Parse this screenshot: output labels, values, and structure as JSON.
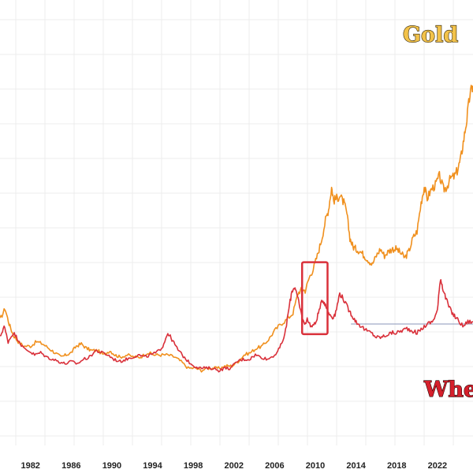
{
  "chart_data": {
    "type": "line",
    "title": "",
    "xlabel": "",
    "ylabel": "",
    "x_ticks": [
      "1982",
      "1986",
      "1990",
      "1994",
      "1998",
      "2002",
      "2006",
      "2010",
      "2014",
      "2018",
      "2022"
    ],
    "xlim": [
      1979.0,
      2025.5
    ],
    "ylim": [
      0,
      100
    ],
    "grid": true,
    "series": [
      {
        "name": "Gold",
        "color": "#f0901e",
        "points": [
          [
            1979.0,
            28.5
          ],
          [
            1979.5,
            31
          ],
          [
            1979.9,
            27.5
          ],
          [
            1980.3,
            25
          ],
          [
            1980.8,
            23.5
          ],
          [
            1981.3,
            22.5
          ],
          [
            1982.0,
            22.5
          ],
          [
            1982.6,
            23.5
          ],
          [
            1983.2,
            23
          ],
          [
            1983.8,
            22
          ],
          [
            1984.4,
            21
          ],
          [
            1985.0,
            20
          ],
          [
            1985.5,
            20.5
          ],
          [
            1986.0,
            21
          ],
          [
            1986.5,
            22.5
          ],
          [
            1987.0,
            23
          ],
          [
            1987.5,
            22
          ],
          [
            1988.0,
            21.5
          ],
          [
            1988.6,
            21.5
          ],
          [
            1989.2,
            20.5
          ],
          [
            1989.8,
            21.5
          ],
          [
            1990.3,
            20.5
          ],
          [
            1990.8,
            20
          ],
          [
            1991.5,
            20.5
          ],
          [
            1992.2,
            20
          ],
          [
            1992.8,
            20
          ],
          [
            1993.5,
            21
          ],
          [
            1994.2,
            20.5
          ],
          [
            1994.8,
            20.5
          ],
          [
            1995.5,
            20.5
          ],
          [
            1996.2,
            20
          ],
          [
            1996.8,
            19
          ],
          [
            1997.5,
            17.5
          ],
          [
            1998.2,
            17.5
          ],
          [
            1998.8,
            17
          ],
          [
            1999.5,
            17.5
          ],
          [
            2000.0,
            17.5
          ],
          [
            2000.6,
            17.5
          ],
          [
            2001.2,
            18
          ],
          [
            2001.8,
            18
          ],
          [
            2002.4,
            19
          ],
          [
            2003.0,
            20.5
          ],
          [
            2003.6,
            21
          ],
          [
            2004.2,
            22
          ],
          [
            2004.8,
            22.5
          ],
          [
            2005.4,
            24
          ],
          [
            2006.0,
            26
          ],
          [
            2006.6,
            27.5
          ],
          [
            2007.2,
            28.5
          ],
          [
            2007.8,
            30
          ],
          [
            2008.3,
            34.5
          ],
          [
            2008.7,
            35.5
          ],
          [
            2009.0,
            35
          ],
          [
            2009.4,
            38
          ],
          [
            2009.8,
            40
          ],
          [
            2010.2,
            43
          ],
          [
            2010.6,
            46.5
          ],
          [
            2011.0,
            51
          ],
          [
            2011.3,
            53.5
          ],
          [
            2011.6,
            58.5
          ],
          [
            2011.8,
            55.5
          ],
          [
            2012.1,
            56
          ],
          [
            2012.4,
            56.5
          ],
          [
            2012.8,
            55
          ],
          [
            2013.1,
            52.5
          ],
          [
            2013.4,
            47
          ],
          [
            2013.7,
            45
          ],
          [
            2014.0,
            44.5
          ],
          [
            2014.4,
            44
          ],
          [
            2014.8,
            43
          ],
          [
            2015.2,
            42
          ],
          [
            2015.6,
            41
          ],
          [
            2016.0,
            43
          ],
          [
            2016.4,
            44.5
          ],
          [
            2016.8,
            43
          ],
          [
            2017.2,
            44
          ],
          [
            2017.6,
            44.5
          ],
          [
            2018.0,
            44.5
          ],
          [
            2018.4,
            43.5
          ],
          [
            2018.8,
            42.5
          ],
          [
            2019.2,
            44
          ],
          [
            2019.6,
            47
          ],
          [
            2020.0,
            48.5
          ],
          [
            2020.4,
            55
          ],
          [
            2020.7,
            58.5
          ],
          [
            2021.0,
            56
          ],
          [
            2021.4,
            58
          ],
          [
            2021.8,
            59
          ],
          [
            2022.2,
            61
          ],
          [
            2022.6,
            58
          ],
          [
            2022.9,
            58.5
          ],
          [
            2023.3,
            60.5
          ],
          [
            2023.7,
            61
          ],
          [
            2024.0,
            62.5
          ],
          [
            2024.3,
            65
          ],
          [
            2024.6,
            69.5
          ],
          [
            2024.9,
            74
          ],
          [
            2025.2,
            79.5
          ],
          [
            2025.5,
            81.5
          ]
        ]
      },
      {
        "name": "Wheat",
        "color": "#d9303a",
        "points": [
          [
            1979.0,
            24.5
          ],
          [
            1979.4,
            27
          ],
          [
            1979.8,
            23.5
          ],
          [
            1980.3,
            25.5
          ],
          [
            1980.8,
            24
          ],
          [
            1981.3,
            22
          ],
          [
            1981.8,
            21.5
          ],
          [
            1982.4,
            20.5
          ],
          [
            1983.0,
            21
          ],
          [
            1983.6,
            20
          ],
          [
            1984.2,
            19.5
          ],
          [
            1984.8,
            19
          ],
          [
            1985.4,
            18.5
          ],
          [
            1986.0,
            19
          ],
          [
            1986.6,
            18.5
          ],
          [
            1987.2,
            19.5
          ],
          [
            1987.8,
            20
          ],
          [
            1988.4,
            21.5
          ],
          [
            1989.0,
            21
          ],
          [
            1989.6,
            20.5
          ],
          [
            1990.2,
            19.5
          ],
          [
            1990.8,
            19
          ],
          [
            1991.4,
            19.5
          ],
          [
            1992.0,
            20
          ],
          [
            1992.6,
            20.5
          ],
          [
            1993.2,
            20
          ],
          [
            1993.8,
            20.5
          ],
          [
            1994.4,
            21
          ],
          [
            1995.0,
            22.5
          ],
          [
            1995.5,
            25.5
          ],
          [
            1995.9,
            24
          ],
          [
            1996.4,
            22
          ],
          [
            1996.9,
            20.5
          ],
          [
            1997.5,
            19
          ],
          [
            1998.1,
            18
          ],
          [
            1998.7,
            17.5
          ],
          [
            1999.3,
            17.5
          ],
          [
            1999.9,
            17.5
          ],
          [
            2000.5,
            17
          ],
          [
            2001.1,
            17.5
          ],
          [
            2001.7,
            17.5
          ],
          [
            2002.3,
            19
          ],
          [
            2002.9,
            19.5
          ],
          [
            2003.5,
            19.5
          ],
          [
            2004.1,
            20.5
          ],
          [
            2004.7,
            20
          ],
          [
            2005.3,
            19.5
          ],
          [
            2006.0,
            20.5
          ],
          [
            2006.5,
            22
          ],
          [
            2007.0,
            25
          ],
          [
            2007.4,
            31
          ],
          [
            2007.7,
            35
          ],
          [
            2008.0,
            36
          ],
          [
            2008.3,
            33
          ],
          [
            2008.6,
            30
          ],
          [
            2008.9,
            27.5
          ],
          [
            2009.2,
            28.5
          ],
          [
            2009.6,
            27
          ],
          [
            2010.0,
            27.5
          ],
          [
            2010.3,
            30
          ],
          [
            2010.7,
            33
          ],
          [
            2011.0,
            32
          ],
          [
            2011.3,
            30
          ],
          [
            2011.7,
            29
          ],
          [
            2012.0,
            30
          ],
          [
            2012.4,
            34.5
          ],
          [
            2012.8,
            33
          ],
          [
            2013.2,
            31
          ],
          [
            2013.6,
            29.5
          ],
          [
            2014.0,
            28
          ],
          [
            2014.5,
            27
          ],
          [
            2015.0,
            26
          ],
          [
            2015.5,
            25.5
          ],
          [
            2016.0,
            24.5
          ],
          [
            2016.5,
            24.5
          ],
          [
            2017.0,
            25
          ],
          [
            2017.5,
            25.5
          ],
          [
            2018.0,
            25.5
          ],
          [
            2018.5,
            26
          ],
          [
            2019.0,
            26.5
          ],
          [
            2019.5,
            26
          ],
          [
            2020.0,
            25.5
          ],
          [
            2020.5,
            26.5
          ],
          [
            2021.0,
            27.5
          ],
          [
            2021.5,
            28
          ],
          [
            2022.0,
            30.5
          ],
          [
            2022.3,
            38
          ],
          [
            2022.5,
            36
          ],
          [
            2022.8,
            33.5
          ],
          [
            2023.2,
            31
          ],
          [
            2023.6,
            29.5
          ],
          [
            2024.0,
            28.5
          ],
          [
            2024.5,
            27
          ],
          [
            2025.0,
            28
          ],
          [
            2025.5,
            28
          ]
        ]
      }
    ],
    "annotations": [
      {
        "type": "rectangle",
        "color": "#d9303a",
        "x_range": [
          2008.7,
          2011.2
        ],
        "y_range": [
          25.2,
          41.5
        ]
      },
      {
        "type": "reference_line",
        "color": "#8a96b8",
        "x_range": [
          2013.5,
          2025.5
        ],
        "y": 27.5
      }
    ],
    "series_labels": [
      "Gold",
      "Whe"
    ]
  }
}
